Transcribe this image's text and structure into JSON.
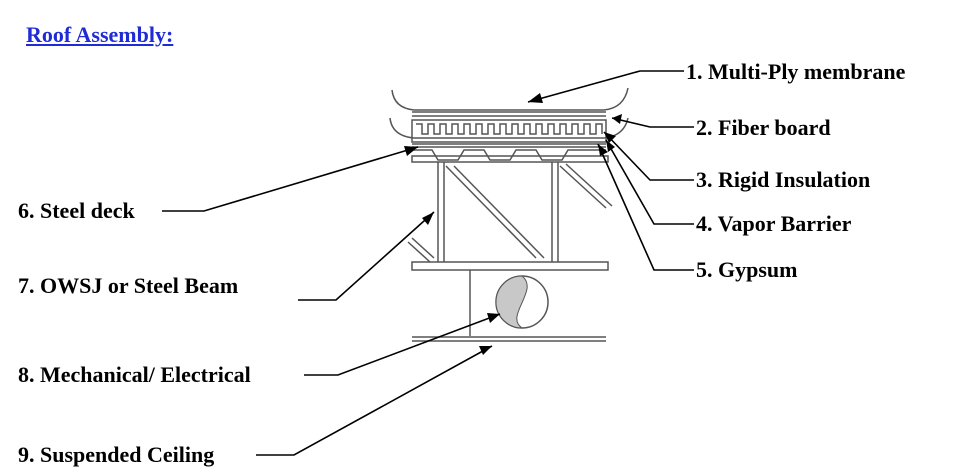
{
  "heading": "Roof Assembly:",
  "labels": {
    "l1": "1. Multi-Ply membrane",
    "l2": "2. Fiber board",
    "l3": "3. Rigid Insulation",
    "l4": "4. Vapor Barrier",
    "l5": "5. Gypsum",
    "l6": "6. Steel deck",
    "l7": "7. OWSJ or Steel Beam",
    "l8": "8. Mechanical/ Electrical",
    "l9": "9. Suspended Ceiling"
  },
  "colors": {
    "heading": "#1f2bd6",
    "line": "#000000",
    "structure": "#555555",
    "duct_fill": "#c8c8c8"
  }
}
